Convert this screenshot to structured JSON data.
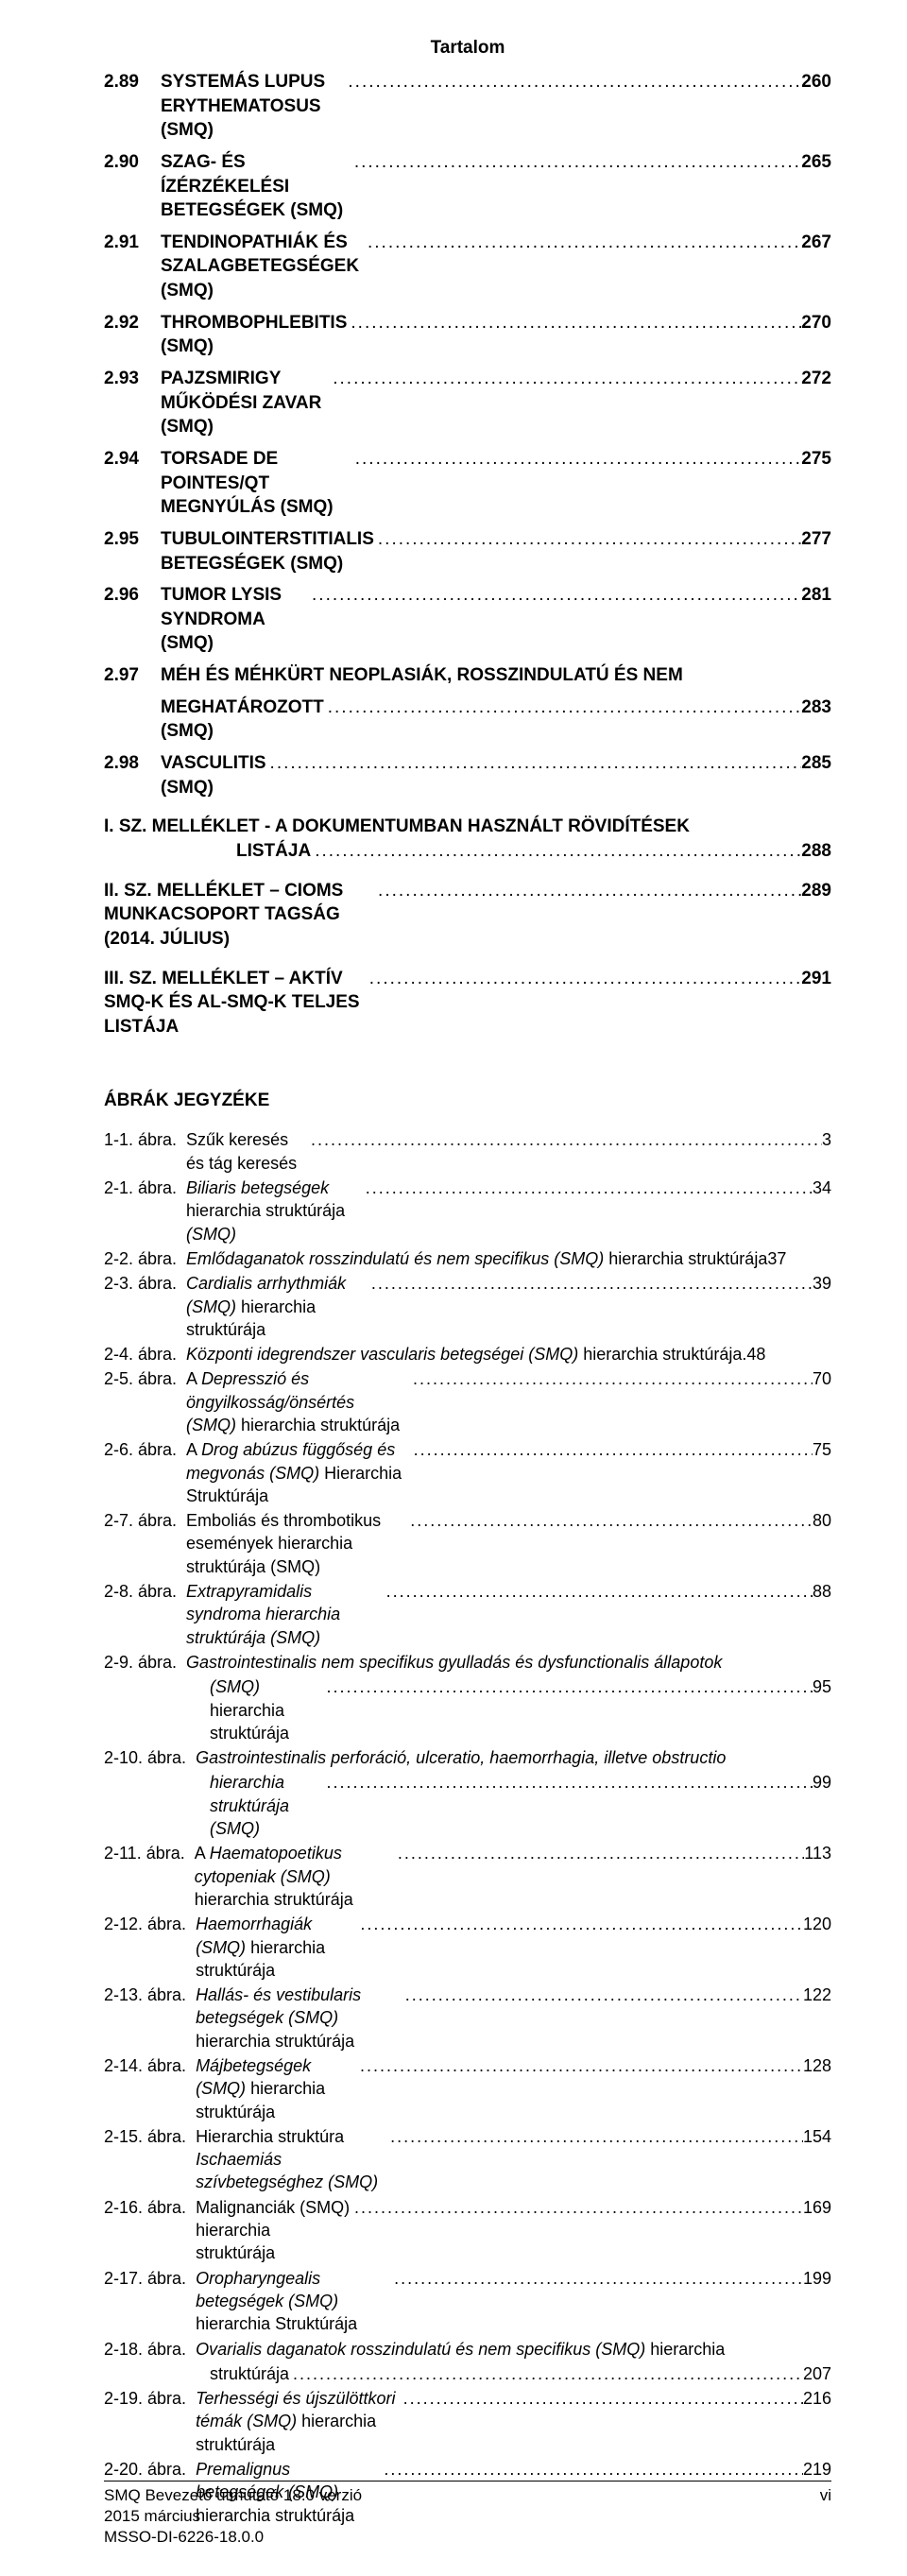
{
  "header": {
    "title": "Tartalom"
  },
  "toc": [
    {
      "num": "2.89",
      "title": "SYSTEMÁS LUPUS ERYTHEMATOSUS (SMQ)",
      "page": "260"
    },
    {
      "num": "2.90",
      "title": "SZAG- ÉS ÍZÉRZÉKELÉSI BETEGSÉGEK (SMQ)",
      "page": "265"
    },
    {
      "num": "2.91",
      "title": "TENDINOPATHIÁK ÉS SZALAGBETEGSÉGEK (SMQ)",
      "page": "267"
    },
    {
      "num": "2.92",
      "title": "THROMBOPHLEBITIS (SMQ)",
      "page": "270"
    },
    {
      "num": "2.93",
      "title": "PAJZSMIRIGY MŰKÖDÉSI ZAVAR (SMQ)",
      "page": "272"
    },
    {
      "num": "2.94",
      "title": "TORSADE DE POINTES/QT MEGNYÚLÁS (SMQ)",
      "page": "275"
    },
    {
      "num": "2.95",
      "title": "TUBULOINTERSTITIALIS BETEGSÉGEK (SMQ)",
      "page": "277"
    },
    {
      "num": "2.96",
      "title": "TUMOR LYSIS SYNDROMA (SMQ)",
      "page": "281"
    },
    {
      "num": "2.97",
      "title": "MÉH ÉS MÉHKÜRT NEOPLASIÁK, ROSSZINDULATÚ ÉS NEM",
      "title2": "MEGHATÁROZOTT (SMQ)",
      "page": "283"
    },
    {
      "num": "2.98",
      "title": "VASCULITIS (SMQ)",
      "page": "285"
    }
  ],
  "appendices": [
    {
      "title": "I. SZ. MELLÉKLET - A DOKUMENTUMBAN HASZNÁLT RÖVIDÍTÉSEK",
      "title2": "LISTÁJA",
      "page": "288"
    },
    {
      "title": "II. SZ. MELLÉKLET – CIOMS MUNKACSOPORT TAGSÁG (2014. JÚLIUS)",
      "page": "289"
    },
    {
      "title": "III. SZ. MELLÉKLET – AKTÍV SMQ-K ÉS AL-SMQ-K TELJES LISTÁJA",
      "page": "291"
    }
  ],
  "figures_heading": "ÁBRÁK JEGYZÉKE",
  "figures": [
    {
      "label": "1-1. ábra.",
      "parts": [
        {
          "t": "Szűk keresés és tág keresés",
          "i": false
        }
      ],
      "page": "3"
    },
    {
      "label": "2-1. ábra.",
      "parts": [
        {
          "t": "Biliaris betegségek ",
          "i": true
        },
        {
          "t": "hierarchia struktúrája ",
          "i": false
        },
        {
          "t": "(SMQ)",
          "i": true
        }
      ],
      "page": "34"
    },
    {
      "label": "2-2. ábra.",
      "parts": [
        {
          "t": "Emlődaganatok rosszindulatú és nem specifikus (SMQ) ",
          "i": true
        },
        {
          "t": "hierarchia struktúrája",
          "i": false
        }
      ],
      "page": "37",
      "nodots": true
    },
    {
      "label": "2-3. ábra.",
      "parts": [
        {
          "t": "Cardialis arrhythmiák (SMQ) ",
          "i": true
        },
        {
          "t": "hierarchia struktúrája",
          "i": false
        }
      ],
      "page": "39"
    },
    {
      "label": "2-4. ábra.",
      "parts": [
        {
          "t": "Központi idegrendszer vascularis betegségei (SMQ) ",
          "i": true
        },
        {
          "t": "hierarchia struktúrája",
          "i": false
        }
      ],
      "page": "48",
      "sep": ". "
    },
    {
      "label": "2-5. ábra.",
      "parts": [
        {
          "t": "A ",
          "i": false
        },
        {
          "t": "Depresszió és öngyilkosság/önsértés (SMQ) ",
          "i": true
        },
        {
          "t": "hierarchia struktúrája",
          "i": false
        }
      ],
      "page": "70"
    },
    {
      "label": "2-6. ábra.",
      "parts": [
        {
          "t": "A ",
          "i": false
        },
        {
          "t": "Drog abúzus függőség és megvonás (SMQ) ",
          "i": true
        },
        {
          "t": "Hierarchia Struktúrája",
          "i": false
        }
      ],
      "page": "75"
    },
    {
      "label": "2-7. ábra.",
      "parts": [
        {
          "t": "Emboliás és thrombotikus események hierarchia struktúrája (SMQ)",
          "i": false
        }
      ],
      "page": "80"
    },
    {
      "label": "2-8. ábra.",
      "parts": [
        {
          "t": "Extrapyramidalis syndroma hierarchia struktúrája (SMQ)",
          "i": true
        }
      ],
      "page": "88"
    },
    {
      "label": "2-9. ábra.",
      "parts": [
        {
          "t": "Gastrointestinalis nem specifikus gyulladás és dysfunctionalis állapotok",
          "i": true
        }
      ],
      "cont": [
        {
          "t": "(SMQ) ",
          "i": true
        },
        {
          "t": "hierarchia struktúrája",
          "i": false
        }
      ],
      "page": "95"
    },
    {
      "label": "2-10. ábra.",
      "parts": [
        {
          "t": "Gastrointestinalis perforáció, ulceratio, haemorrhagia, illetve obstructio",
          "i": true
        }
      ],
      "cont": [
        {
          "t": "hierarchia struktúrája (SMQ)",
          "i": true
        }
      ],
      "page": "99"
    },
    {
      "label": "2-11. ábra.",
      "parts": [
        {
          "t": "A ",
          "i": false
        },
        {
          "t": "Haematopoetikus cytopeniak (SMQ) ",
          "i": true
        },
        {
          "t": "hierarchia struktúrája",
          "i": false
        }
      ],
      "page": "113"
    },
    {
      "label": "2-12. ábra.",
      "parts": [
        {
          "t": "Haemorrhagiák (SMQ) ",
          "i": true
        },
        {
          "t": "hierarchia struktúrája",
          "i": false
        }
      ],
      "page": "120"
    },
    {
      "label": "2-13. ábra.",
      "parts": [
        {
          "t": "Hallás- és vestibularis betegségek (SMQ) ",
          "i": true
        },
        {
          "t": "hierarchia struktúrája",
          "i": false
        }
      ],
      "page": "122"
    },
    {
      "label": "2-14. ábra.",
      "parts": [
        {
          "t": "Májbetegségek (SMQ) ",
          "i": true
        },
        {
          "t": "hierarchia struktúrája",
          "i": false
        }
      ],
      "page": "128"
    },
    {
      "label": "2-15. ábra.",
      "parts": [
        {
          "t": "Hierarchia struktúra ",
          "i": false
        },
        {
          "t": "Ischaemiás szívbetegséghez (SMQ)",
          "i": true
        }
      ],
      "page": "154"
    },
    {
      "label": "2-16. ábra.",
      "parts": [
        {
          "t": "Malignanciák (SMQ) ",
          "i": false
        },
        {
          "t": "hierarchia struktúrája",
          "i": false
        }
      ],
      "page": "169"
    },
    {
      "label": "2-17. ábra.",
      "parts": [
        {
          "t": "Oropharyngealis betegségek (SMQ) ",
          "i": true
        },
        {
          "t": "hierarchia Struktúrája",
          "i": false
        }
      ],
      "page": "199"
    },
    {
      "label": "2-18. ábra.",
      "parts": [
        {
          "t": "Ovarialis daganatok rosszindulatú és nem specifikus (SMQ) ",
          "i": true
        },
        {
          "t": "hierarchia",
          "i": false
        }
      ],
      "cont": [
        {
          "t": "struktúrája",
          "i": false
        }
      ],
      "page": "207"
    },
    {
      "label": "2-19. ábra.",
      "parts": [
        {
          "t": "Terhességi és újszülöttkori témák (SMQ) ",
          "i": true
        },
        {
          "t": "hierarchia struktúrája",
          "i": false
        }
      ],
      "page": "216"
    },
    {
      "label": "2-20. ábra.",
      "parts": [
        {
          "t": "Premalignus betegségek (SMQ) ",
          "i": true
        },
        {
          "t": "hierarchia struktúrája",
          "i": false
        }
      ],
      "page": "219"
    }
  ],
  "footer": {
    "left1": "SMQ Bevezető útmutató 18.0 verzió",
    "left2": "2015 március",
    "left3": "MSSO-DI-6226-18.0.0",
    "right": "vi"
  }
}
